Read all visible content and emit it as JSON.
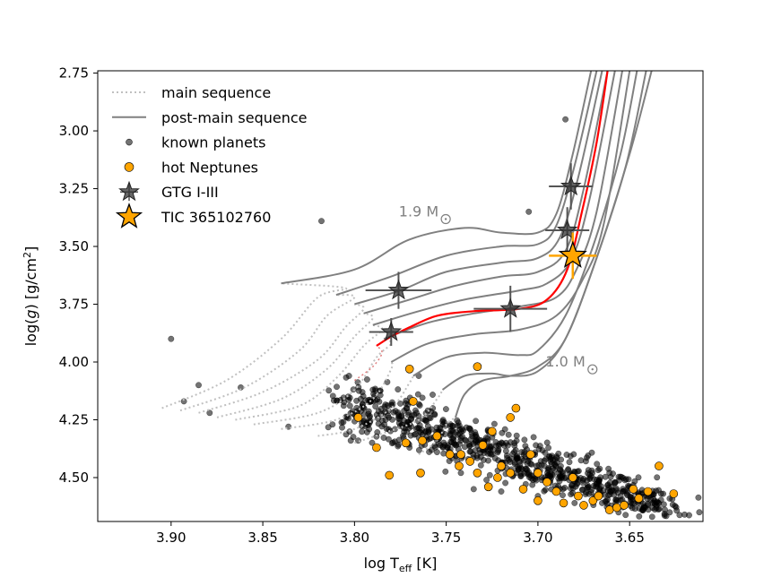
{
  "chart_data": {
    "type": "scatter",
    "title": "",
    "xlabel": "log T",
    "xlabel_sub": "eff",
    "xlabel_unit": " [K]",
    "ylabel_parts": [
      "log(",
      "g",
      ") [g/cm",
      "2",
      "]"
    ],
    "xlim": [
      3.94,
      3.61
    ],
    "ylim": [
      4.69,
      2.74
    ],
    "x_ticks": [
      3.9,
      3.85,
      3.8,
      3.75,
      3.7,
      3.65
    ],
    "x_tick_labels": [
      "3.90",
      "3.85",
      "3.80",
      "3.75",
      "3.70",
      "3.65"
    ],
    "y_ticks": [
      2.75,
      3.0,
      3.25,
      3.5,
      3.75,
      4.0,
      4.25,
      4.5
    ],
    "y_tick_labels": [
      "2.75",
      "3.00",
      "3.25",
      "3.50",
      "3.75",
      "4.00",
      "4.25",
      "4.50"
    ],
    "legend": {
      "placement": "top-left",
      "entries": [
        {
          "label": "main sequence",
          "kind": "dotted-line"
        },
        {
          "label": "post-main sequence",
          "kind": "solid-line"
        },
        {
          "label": "known planets",
          "kind": "gray-dot"
        },
        {
          "label": "hot Neptunes",
          "kind": "orange-dot"
        },
        {
          "label": "GTG I-III",
          "kind": "gray-star"
        },
        {
          "label": "TIC 365102760",
          "kind": "orange-star"
        }
      ]
    },
    "annotations": [
      {
        "text": "1.9 M",
        "x": 3.765,
        "y": 3.37
      },
      {
        "text": "1.0 M",
        "x": 3.685,
        "y": 4.02
      }
    ],
    "tracks": [
      {
        "ms": [
          [
            3.905,
            4.2
          ],
          [
            3.87,
            4.08
          ],
          [
            3.84,
            3.9
          ],
          [
            3.82,
            3.72
          ],
          [
            3.805,
            3.68
          ]
        ],
        "post": [
          [
            3.84,
            3.66
          ],
          [
            3.8,
            3.6
          ],
          [
            3.77,
            3.47
          ],
          [
            3.74,
            3.42
          ],
          [
            3.72,
            3.44
          ],
          [
            3.7,
            3.44
          ],
          [
            3.69,
            3.36
          ],
          [
            3.681,
            3.1
          ],
          [
            3.671,
            2.74
          ]
        ]
      },
      {
        "ms": [
          [
            3.895,
            4.21
          ],
          [
            3.86,
            4.11
          ],
          [
            3.83,
            3.95
          ],
          [
            3.815,
            3.8
          ],
          [
            3.8,
            3.72
          ]
        ],
        "post": [
          [
            3.81,
            3.71
          ],
          [
            3.78,
            3.63
          ],
          [
            3.75,
            3.54
          ],
          [
            3.72,
            3.5
          ],
          [
            3.7,
            3.49
          ],
          [
            3.69,
            3.41
          ],
          [
            3.68,
            3.15
          ],
          [
            3.668,
            2.74
          ]
        ]
      },
      {
        "ms": [
          [
            3.885,
            4.22
          ],
          [
            3.85,
            4.13
          ],
          [
            3.82,
            3.99
          ],
          [
            3.805,
            3.85
          ],
          [
            3.795,
            3.77
          ]
        ],
        "post": [
          [
            3.8,
            3.75
          ],
          [
            3.775,
            3.69
          ],
          [
            3.75,
            3.61
          ],
          [
            3.72,
            3.57
          ],
          [
            3.7,
            3.55
          ],
          [
            3.688,
            3.46
          ],
          [
            3.678,
            3.2
          ],
          [
            3.665,
            2.74
          ]
        ]
      },
      {
        "ms": [
          [
            3.875,
            4.24
          ],
          [
            3.84,
            4.16
          ],
          [
            3.815,
            4.03
          ],
          [
            3.8,
            3.89
          ],
          [
            3.79,
            3.81
          ]
        ],
        "post": [
          [
            3.795,
            3.79
          ],
          [
            3.77,
            3.73
          ],
          [
            3.745,
            3.67
          ],
          [
            3.72,
            3.63
          ],
          [
            3.7,
            3.61
          ],
          [
            3.685,
            3.52
          ],
          [
            3.675,
            3.25
          ],
          [
            3.662,
            2.74
          ]
        ]
      },
      {
        "ms": [
          [
            3.865,
            4.25
          ],
          [
            3.83,
            4.19
          ],
          [
            3.81,
            4.07
          ],
          [
            3.795,
            3.93
          ],
          [
            3.785,
            3.86
          ]
        ],
        "post": [
          [
            3.79,
            3.84
          ],
          [
            3.765,
            3.78
          ],
          [
            3.74,
            3.73
          ],
          [
            3.71,
            3.69
          ],
          [
            3.695,
            3.66
          ],
          [
            3.682,
            3.56
          ],
          [
            3.672,
            3.3
          ],
          [
            3.658,
            2.74
          ]
        ]
      },
      {
        "ms": [
          [
            3.855,
            4.27
          ],
          [
            3.82,
            4.22
          ],
          [
            3.8,
            4.12
          ],
          [
            3.788,
            3.98
          ],
          [
            3.78,
            3.92
          ]
        ],
        "post": [
          [
            3.784,
            3.9
          ],
          [
            3.76,
            3.83
          ],
          [
            3.735,
            3.79
          ],
          [
            3.71,
            3.76
          ],
          [
            3.69,
            3.72
          ],
          [
            3.679,
            3.6
          ],
          [
            3.668,
            3.35
          ],
          [
            3.654,
            2.74
          ]
        ]
      },
      {
        "ms": [
          [
            3.84,
            4.29
          ],
          [
            3.81,
            4.25
          ],
          [
            3.79,
            4.16
          ],
          [
            3.78,
            4.03
          ]
        ],
        "post": [
          [
            3.78,
            4.0
          ],
          [
            3.76,
            3.92
          ],
          [
            3.735,
            3.88
          ],
          [
            3.71,
            3.86
          ],
          [
            3.69,
            3.8
          ],
          [
            3.676,
            3.65
          ],
          [
            3.664,
            3.4
          ],
          [
            3.65,
            2.74
          ]
        ]
      },
      {
        "ms": [
          [
            3.82,
            4.32
          ],
          [
            3.8,
            4.29
          ],
          [
            3.78,
            4.2
          ],
          [
            3.77,
            4.09
          ]
        ],
        "post": [
          [
            3.768,
            4.06
          ],
          [
            3.75,
            3.98
          ],
          [
            3.73,
            3.96
          ],
          [
            3.71,
            3.97
          ],
          [
            3.7,
            3.95
          ],
          [
            3.685,
            3.8
          ],
          [
            3.67,
            3.5
          ],
          [
            3.655,
            3.1
          ],
          [
            3.646,
            2.74
          ]
        ]
      },
      {
        "ms": [
          [
            3.8,
            4.35
          ],
          [
            3.785,
            4.31
          ],
          [
            3.765,
            4.25
          ],
          [
            3.755,
            4.16
          ]
        ],
        "post": [
          [
            3.752,
            4.12
          ],
          [
            3.74,
            4.06
          ],
          [
            3.725,
            4.05
          ],
          [
            3.715,
            4.06
          ],
          [
            3.7,
            4.04
          ],
          [
            3.685,
            3.9
          ],
          [
            3.668,
            3.55
          ],
          [
            3.652,
            3.15
          ],
          [
            3.641,
            2.74
          ]
        ]
      },
      {
        "ms": [
          [
            3.765,
            4.4
          ],
          [
            3.755,
            4.34
          ],
          [
            3.75,
            4.27
          ],
          [
            3.745,
            4.24
          ]
        ],
        "post": [
          [
            3.745,
            4.24
          ],
          [
            3.74,
            4.14
          ],
          [
            3.73,
            4.08
          ],
          [
            3.715,
            4.06
          ],
          [
            3.7,
            4.02
          ],
          [
            3.685,
            3.9
          ],
          [
            3.668,
            3.55
          ],
          [
            3.65,
            3.1
          ],
          [
            3.638,
            2.74
          ]
        ]
      }
    ],
    "highlight_track": {
      "ms": [
        [
          3.8,
          4.08
        ],
        [
          3.79,
          4.02
        ],
        [
          3.785,
          3.96
        ]
      ],
      "post": [
        [
          3.788,
          3.93
        ],
        [
          3.78,
          3.89
        ],
        [
          3.77,
          3.85
        ],
        [
          3.755,
          3.8
        ],
        [
          3.735,
          3.78
        ],
        [
          3.71,
          3.77
        ],
        [
          3.695,
          3.73
        ],
        [
          3.684,
          3.6
        ],
        [
          3.676,
          3.35
        ],
        [
          3.668,
          3.05
        ],
        [
          3.662,
          2.74
        ]
      ]
    },
    "gtg_stars": [
      {
        "x": 3.776,
        "y": 3.69,
        "xerr": 0.018,
        "yerr": 0.08
      },
      {
        "x": 3.78,
        "y": 3.87,
        "xerr": 0.012,
        "yerr": 0.06
      },
      {
        "x": 3.715,
        "y": 3.77,
        "xerr": 0.02,
        "yerr": 0.1
      },
      {
        "x": 3.682,
        "y": 3.24,
        "xerr": 0.012,
        "yerr": 0.1
      },
      {
        "x": 3.684,
        "y": 3.43,
        "xerr": 0.012,
        "yerr": 0.1
      }
    ],
    "target_star": {
      "label": "TIC 365102760",
      "x": 3.681,
      "y": 3.54,
      "xerr": 0.013,
      "yerr": 0.1
    },
    "known_planets_sample": [
      [
        3.9,
        3.9
      ],
      [
        3.893,
        4.17
      ],
      [
        3.885,
        4.1
      ],
      [
        3.879,
        4.22
      ],
      [
        3.862,
        4.11
      ],
      [
        3.836,
        4.28
      ],
      [
        3.818,
        3.39
      ],
      [
        3.765,
        4.06
      ],
      [
        3.738,
        4.42
      ],
      [
        3.712,
        4.48
      ],
      [
        3.69,
        4.55
      ],
      [
        3.665,
        4.61
      ],
      [
        3.642,
        4.63
      ],
      [
        3.62,
        4.66
      ],
      [
        3.612,
        4.65
      ],
      [
        3.685,
        2.95
      ],
      [
        3.705,
        3.35
      ],
      [
        3.812,
        4.27
      ],
      [
        3.798,
        4.34
      ],
      [
        3.783,
        4.25
      ],
      [
        3.77,
        4.37
      ],
      [
        3.755,
        4.39
      ],
      [
        3.742,
        4.48
      ],
      [
        3.728,
        4.51
      ],
      [
        3.76,
        4.21
      ],
      [
        3.775,
        4.18
      ],
      [
        3.79,
        4.12
      ],
      [
        3.803,
        4.06
      ],
      [
        3.735,
        4.55
      ],
      [
        3.72,
        4.56
      ],
      [
        3.7,
        4.58
      ],
      [
        3.68,
        4.61
      ]
    ],
    "hot_neptunes": [
      [
        3.77,
        4.03
      ],
      [
        3.733,
        4.02
      ],
      [
        3.768,
        4.17
      ],
      [
        3.798,
        4.24
      ],
      [
        3.788,
        4.37
      ],
      [
        3.772,
        4.35
      ],
      [
        3.763,
        4.34
      ],
      [
        3.755,
        4.32
      ],
      [
        3.748,
        4.4
      ],
      [
        3.743,
        4.45
      ],
      [
        3.737,
        4.43
      ],
      [
        3.73,
        4.36
      ],
      [
        3.725,
        4.3
      ],
      [
        3.733,
        4.48
      ],
      [
        3.727,
        4.54
      ],
      [
        3.72,
        4.45
      ],
      [
        3.715,
        4.48
      ],
      [
        3.712,
        4.2
      ],
      [
        3.715,
        4.24
      ],
      [
        3.708,
        4.55
      ],
      [
        3.7,
        4.48
      ],
      [
        3.695,
        4.52
      ],
      [
        3.69,
        4.56
      ],
      [
        3.686,
        4.61
      ],
      [
        3.681,
        4.5
      ],
      [
        3.678,
        4.58
      ],
      [
        3.675,
        4.62
      ],
      [
        3.67,
        4.6
      ],
      [
        3.667,
        4.58
      ],
      [
        3.661,
        4.64
      ],
      [
        3.657,
        4.63
      ],
      [
        3.653,
        4.62
      ],
      [
        3.648,
        4.55
      ],
      [
        3.645,
        4.59
      ],
      [
        3.64,
        4.56
      ],
      [
        3.634,
        4.45
      ],
      [
        3.626,
        4.57
      ],
      [
        3.704,
        4.4
      ],
      [
        3.722,
        4.5
      ],
      [
        3.781,
        4.49
      ],
      [
        3.764,
        4.48
      ],
      [
        3.742,
        4.4
      ],
      [
        3.7,
        4.6
      ]
    ]
  }
}
